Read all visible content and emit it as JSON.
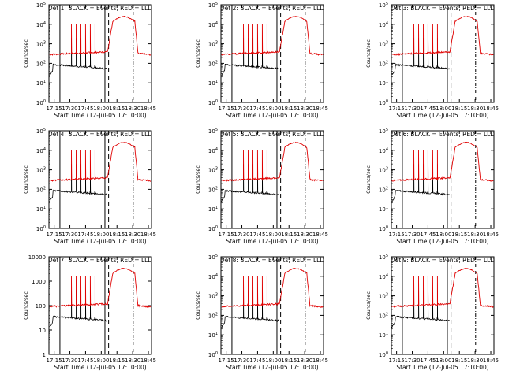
{
  "colors": {
    "events": "#000000",
    "lld": "#e00000",
    "frame": "#000000"
  },
  "chart_data": [
    {
      "type": "line",
      "title": "Det 1: BLACK = Events, RED = LLD",
      "xlabel": "Start Time (12-Jul-05 17:10:00)",
      "ylabel": "Counts/sec",
      "x_ticks": [
        "17:15",
        "17:30",
        "17:45",
        "18:00",
        "18:15",
        "18:30",
        "18:45"
      ],
      "y_ticks": [
        "10^0",
        "10^1",
        "10^2",
        "10^3",
        "10^4",
        "10^5"
      ],
      "ylim": [
        "10^0",
        "10^5"
      ],
      "log_y": true
    },
    {
      "type": "line",
      "title": "Det 2: BLACK = Events, RED = LLD",
      "xlabel": "Start Time (12-Jul-05 17:10:00)",
      "ylabel": "Counts/sec",
      "x_ticks": [
        "17:15",
        "17:30",
        "17:45",
        "18:00",
        "18:15",
        "18:30",
        "18:45"
      ],
      "y_ticks": [
        "10^0",
        "10^1",
        "10^2",
        "10^3",
        "10^4",
        "10^5"
      ],
      "ylim": [
        "10^0",
        "10^5"
      ],
      "log_y": true
    },
    {
      "type": "line",
      "title": "Det 3: BLACK = Events, RED = LLD",
      "xlabel": "Start Time (12-Jul-05 17:10:00)",
      "ylabel": "Counts/sec",
      "x_ticks": [
        "17:15",
        "17:30",
        "17:45",
        "18:00",
        "18:15",
        "18:30",
        "18:45"
      ],
      "y_ticks": [
        "10^0",
        "10^1",
        "10^2",
        "10^3",
        "10^4",
        "10^5"
      ],
      "ylim": [
        "10^0",
        "10^5"
      ],
      "log_y": true
    },
    {
      "type": "line",
      "title": "Det 4: BLACK = Events, RED = LLD",
      "xlabel": "Start Time (12-Jul-05 17:10:00)",
      "ylabel": "Counts/sec",
      "x_ticks": [
        "17:15",
        "17:30",
        "17:45",
        "18:00",
        "18:15",
        "18:30",
        "18:45"
      ],
      "y_ticks": [
        "10^0",
        "10^1",
        "10^2",
        "10^3",
        "10^4",
        "10^5"
      ],
      "ylim": [
        "10^0",
        "10^5"
      ],
      "log_y": true
    },
    {
      "type": "line",
      "title": "Det 5: BLACK = Events, RED = LLD",
      "xlabel": "Start Time (12-Jul-05 17:10:00)",
      "ylabel": "Counts/sec",
      "x_ticks": [
        "17:15",
        "17:30",
        "17:45",
        "18:00",
        "18:15",
        "18:30",
        "18:45"
      ],
      "y_ticks": [
        "10^0",
        "10^1",
        "10^2",
        "10^3",
        "10^4",
        "10^5"
      ],
      "ylim": [
        "10^0",
        "10^5"
      ],
      "log_y": true
    },
    {
      "type": "line",
      "title": "Det 6: BLACK = Events, RED = LLD",
      "xlabel": "Start Time (12-Jul-05 17:10:00)",
      "ylabel": "Counts/sec",
      "x_ticks": [
        "17:15",
        "17:30",
        "17:45",
        "18:00",
        "18:15",
        "18:30",
        "18:45"
      ],
      "y_ticks": [
        "10^0",
        "10^1",
        "10^2",
        "10^3",
        "10^4",
        "10^5"
      ],
      "ylim": [
        "10^0",
        "10^5"
      ],
      "log_y": true
    },
    {
      "type": "line",
      "title": "Det 7: BLACK = Events, RED = LLD",
      "xlabel": "Start Time (12-Jul-05 17:10:00)",
      "ylabel": "Counts/sec",
      "x_ticks": [
        "17:15",
        "17:30",
        "17:45",
        "18:00",
        "18:15",
        "18:30",
        "18:45"
      ],
      "y_ticks": [
        "1",
        "10",
        "100",
        "1000",
        "10000"
      ],
      "ylim": [
        1,
        10000
      ],
      "log_y": true
    },
    {
      "type": "line",
      "title": "Det 8: BLACK = Events, RED = LLD",
      "xlabel": "Start Time (12-Jul-05 17:10:00)",
      "ylabel": "Counts/sec",
      "x_ticks": [
        "17:15",
        "17:30",
        "17:45",
        "18:00",
        "18:15",
        "18:30",
        "18:45"
      ],
      "y_ticks": [
        "10^0",
        "10^1",
        "10^2",
        "10^3",
        "10^4",
        "10^5"
      ],
      "ylim": [
        "10^0",
        "10^5"
      ],
      "log_y": true
    },
    {
      "type": "line",
      "title": "Det 9: BLACK = Events, RED = LLD",
      "xlabel": "Start Time (12-Jul-05 17:10:00)",
      "ylabel": "Counts/sec",
      "x_ticks": [
        "17:15",
        "17:30",
        "17:45",
        "18:00",
        "18:15",
        "18:30",
        "18:45"
      ],
      "y_ticks": [
        "10^0",
        "10^1",
        "10^2",
        "10^3",
        "10^4",
        "10^5"
      ],
      "ylim": [
        "10^0",
        "10^5"
      ],
      "log_y": true
    }
  ]
}
